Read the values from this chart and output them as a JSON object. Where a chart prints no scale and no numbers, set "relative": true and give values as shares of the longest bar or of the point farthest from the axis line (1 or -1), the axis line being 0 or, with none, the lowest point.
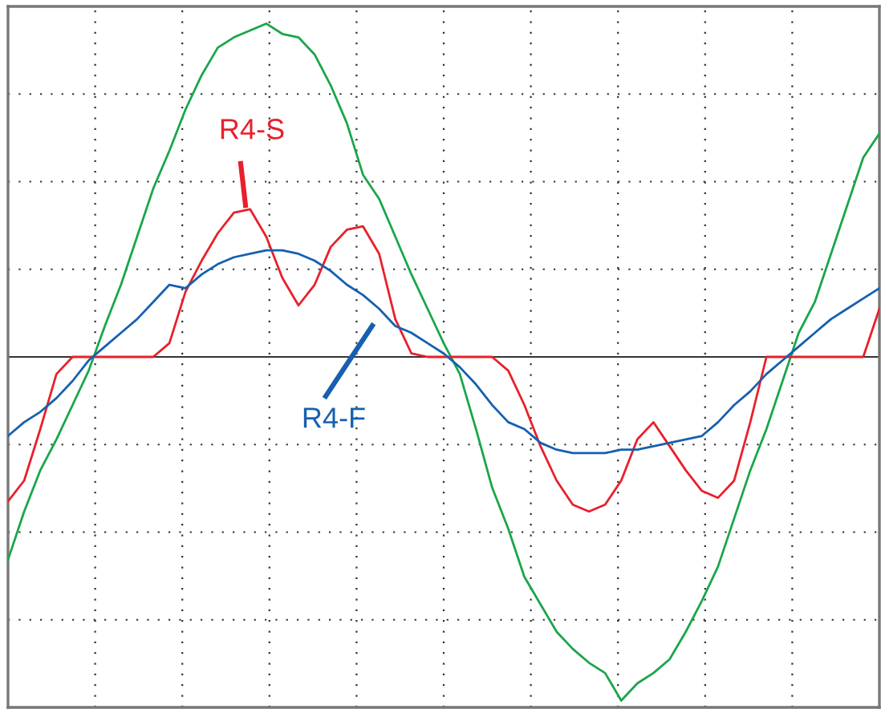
{
  "chart_data": {
    "type": "line",
    "relative": true,
    "grid": true,
    "legend": false,
    "categories": [
      null,
      null,
      null,
      null,
      null,
      null,
      null,
      null,
      null,
      null,
      null,
      null,
      null,
      null,
      null,
      null,
      null,
      null,
      null,
      null,
      null,
      null,
      null,
      null,
      null,
      null,
      null,
      null,
      null,
      null,
      null,
      null,
      null,
      null,
      null,
      null,
      null,
      null,
      null,
      null,
      null,
      null,
      null,
      null,
      null,
      null,
      null,
      null,
      null,
      null,
      null,
      null,
      null,
      null,
      null
    ],
    "series": [
      {
        "color": "#1aa64a",
        "values": [
          -0.59,
          -0.45,
          -0.33,
          -0.24,
          -0.14,
          -0.04,
          0.09,
          0.21,
          0.35,
          0.49,
          0.6,
          0.72,
          0.82,
          0.9,
          0.93,
          0.95,
          0.97,
          0.94,
          0.93,
          0.88,
          0.79,
          0.68,
          0.53,
          0.46,
          0.35,
          0.24,
          0.14,
          0.04,
          -0.05,
          -0.21,
          -0.38,
          -0.5,
          -0.64,
          -0.72,
          -0.8,
          -0.85,
          -0.89,
          -0.92,
          -1.0,
          -0.95,
          -0.92,
          -0.88,
          -0.8,
          -0.71,
          -0.61,
          -0.47,
          -0.33,
          -0.21,
          -0.07,
          0.07,
          0.16,
          0.3,
          0.44,
          0.58,
          0.65
        ]
      },
      {
        "name": "R4-S",
        "color": "#e8202a",
        "values": [
          -0.42,
          -0.36,
          -0.21,
          -0.05,
          0,
          0,
          0,
          0,
          0,
          0,
          0.04,
          0.19,
          0.28,
          0.36,
          0.42,
          0.43,
          0.35,
          0.23,
          0.15,
          0.21,
          0.32,
          0.37,
          0.38,
          0.3,
          0.11,
          0.01,
          0,
          0,
          0,
          0,
          0,
          -0.04,
          -0.14,
          -0.26,
          -0.36,
          -0.43,
          -0.45,
          -0.43,
          -0.36,
          -0.24,
          -0.19,
          -0.26,
          -0.33,
          -0.39,
          -0.41,
          -0.36,
          -0.19,
          0,
          0,
          0,
          0,
          0,
          0,
          0,
          0.14
        ]
      },
      {
        "name": "R4-F",
        "color": "#1560b0",
        "values": [
          -0.23,
          -0.19,
          -0.16,
          -0.12,
          -0.07,
          -0.01,
          0.03,
          0.07,
          0.11,
          0.16,
          0.21,
          0.2,
          0.24,
          0.27,
          0.29,
          0.3,
          0.31,
          0.31,
          0.3,
          0.28,
          0.25,
          0.21,
          0.18,
          0.14,
          0.09,
          0.07,
          0.04,
          0.01,
          -0.03,
          -0.08,
          -0.14,
          -0.19,
          -0.21,
          -0.25,
          -0.27,
          -0.28,
          -0.28,
          -0.28,
          -0.27,
          -0.27,
          -0.26,
          -0.25,
          -0.24,
          -0.23,
          -0.19,
          -0.14,
          -0.1,
          -0.05,
          -0.01,
          0.03,
          0.07,
          0.11,
          0.14,
          0.17,
          0.2
        ]
      }
    ]
  }
}
